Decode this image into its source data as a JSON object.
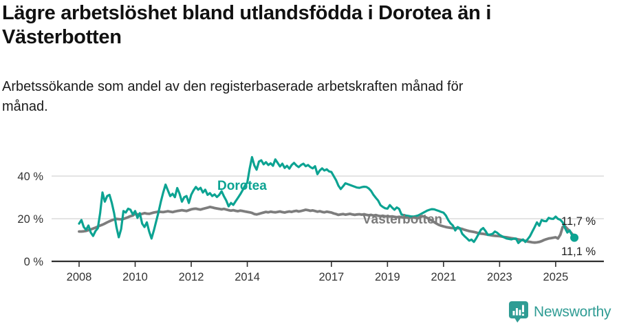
{
  "header": {
    "title": "Lägre arbetslöshet bland utlandsfödda i Dorotea än i\nVästerbotten",
    "subtitle": "Arbetssökande som andel av den registerbaserade arbetskraften månad för\nmånad."
  },
  "footer": {
    "brand": "Newsworthy"
  },
  "colors": {
    "dorotea": "#0ca392",
    "vasterbotten": "#7d7d7d",
    "grid": "#dcdcdc",
    "axis": "#2e2e2e",
    "axis_text": "#333333",
    "annotation_text": "#1c1c1c",
    "logo": "#2f9c94",
    "background": "#ffffff"
  },
  "chart_data": {
    "type": "line",
    "title": "Lägre arbetslöshet bland utlandsfödda i Dorotea än i Västerbotten",
    "subtitle": "Arbetssökande som andel av den registerbaserade arbetskraften månad för månad.",
    "unit": "%",
    "frequency": "monthly",
    "x_start": "2008-01",
    "x_end": "2025-09",
    "grid": "horizontal",
    "legend_position": "inline-labels",
    "ylim": [
      0,
      52
    ],
    "x_ticks": [
      2008,
      2010,
      2012,
      2014,
      2017,
      2019,
      2021,
      2023,
      2025
    ],
    "y_ticks": [
      {
        "value": 0,
        "label": "0 %"
      },
      {
        "value": 20,
        "label": "20 %"
      },
      {
        "value": 40,
        "label": "40 %"
      }
    ],
    "series": [
      {
        "name": "Dorotea",
        "final_value": 11.1,
        "end_label": "11,1 %",
        "has_end_dot": true,
        "values": [
          17.7,
          19.4,
          16.1,
          14.8,
          16.8,
          13.5,
          11.9,
          14.2,
          15.5,
          22.6,
          32.3,
          28.0,
          30.6,
          31.2,
          27.4,
          22.6,
          16.1,
          11.3,
          15.1,
          23.6,
          22.9,
          24.7,
          24.2,
          22.0,
          23.6,
          20.4,
          22.6,
          17.7,
          16.1,
          18.3,
          14.0,
          10.7,
          14.5,
          18.8,
          23.1,
          28.0,
          32.3,
          36.0,
          33.3,
          30.6,
          31.7,
          30.1,
          34.4,
          31.7,
          28.0,
          30.1,
          30.6,
          27.4,
          31.2,
          33.3,
          34.9,
          33.6,
          34.5,
          32.3,
          33.6,
          31.2,
          32.0,
          30.6,
          31.4,
          30.2,
          31.2,
          32.9,
          30.5,
          28.5,
          25.8,
          27.4,
          26.5,
          28.2,
          29.8,
          31.5,
          33.4,
          35.5,
          37.0,
          43.5,
          48.9,
          45.0,
          43.0,
          46.8,
          47.4,
          45.5,
          46.5,
          45.2,
          46.0,
          44.8,
          47.8,
          46.2,
          44.5,
          45.8,
          43.8,
          44.8,
          43.5,
          45.2,
          46.2,
          45.0,
          44.2,
          45.2,
          45.8,
          44.6,
          45.2,
          44.2,
          43.6,
          44.6,
          40.9,
          42.6,
          43.6,
          42.6,
          43.2,
          42.2,
          41.9,
          40.0,
          38.1,
          35.5,
          33.9,
          35.2,
          36.6,
          36.2,
          35.8,
          35.4,
          35.0,
          34.6,
          34.5,
          34.8,
          35.0,
          34.9,
          34.2,
          33.0,
          31.2,
          29.8,
          28.5,
          26.4,
          25.5,
          24.9,
          24.7,
          26.4,
          25.2,
          24.2,
          25.3,
          24.6,
          22.0,
          21.7,
          21.5,
          21.3,
          21.1,
          21.0,
          21.2,
          21.5,
          22.0,
          22.6,
          23.2,
          23.8,
          24.2,
          24.5,
          24.4,
          24.0,
          23.6,
          23.2,
          22.8,
          21.5,
          19.4,
          17.8,
          16.8,
          14.5,
          16.1,
          15.5,
          12.9,
          11.8,
          10.8,
          9.7,
          10.2,
          9.1,
          10.8,
          12.8,
          14.8,
          15.6,
          14.2,
          12.4,
          12.6,
          12.9,
          14.0,
          13.4,
          12.4,
          11.8,
          11.2,
          10.7,
          10.5,
          10.3,
          10.6,
          10.7,
          8.6,
          9.6,
          10.3,
          9.1,
          10.4,
          11.8,
          14.0,
          16.1,
          18.3,
          16.7,
          19.4,
          18.9,
          18.8,
          20.4,
          20.0,
          19.9,
          21.0,
          19.9,
          19.5,
          18.3,
          15.6,
          13.5,
          14.5,
          12.2,
          11.1
        ]
      },
      {
        "name": "Västerbotten",
        "final_value": 11.7,
        "end_label": "11,7 %",
        "has_end_dot": false,
        "values": [
          14.0,
          14.0,
          14.1,
          14.3,
          14.6,
          15.0,
          15.4,
          15.8,
          16.3,
          16.8,
          17.2,
          17.7,
          18.3,
          18.8,
          19.3,
          19.6,
          19.9,
          19.8,
          19.7,
          19.9,
          20.3,
          20.7,
          21.2,
          21.5,
          22.3,
          22.1,
          22.0,
          22.3,
          22.6,
          22.4,
          22.3,
          22.6,
          22.9,
          23.1,
          23.3,
          23.2,
          23.1,
          23.3,
          23.5,
          23.3,
          23.1,
          23.4,
          23.6,
          23.8,
          24.0,
          23.8,
          23.6,
          24.0,
          24.4,
          24.6,
          24.7,
          24.5,
          24.3,
          24.6,
          24.9,
          25.2,
          25.5,
          25.3,
          25.0,
          24.8,
          24.6,
          24.4,
          24.6,
          24.3,
          24.0,
          23.8,
          24.0,
          23.7,
          23.5,
          23.8,
          23.6,
          23.4,
          23.2,
          23.0,
          22.7,
          22.2,
          22.0,
          22.3,
          22.6,
          22.9,
          23.2,
          23.0,
          23.3,
          23.1,
          23.0,
          23.2,
          23.4,
          23.1,
          22.9,
          23.2,
          23.4,
          23.2,
          23.5,
          23.7,
          23.4,
          23.6,
          23.9,
          24.2,
          24.0,
          23.7,
          23.9,
          23.6,
          23.3,
          23.5,
          23.2,
          23.0,
          23.3,
          23.1,
          22.9,
          22.5,
          22.2,
          21.8,
          22.0,
          22.2,
          21.9,
          22.1,
          22.3,
          22.0,
          21.8,
          22.0,
          22.1,
          21.9,
          22.1,
          21.8,
          21.6,
          21.8,
          21.5,
          21.7,
          21.4,
          21.2,
          21.4,
          21.1,
          21.2,
          21.0,
          21.1,
          20.9,
          20.7,
          20.9,
          20.7,
          20.5,
          20.6,
          20.4,
          20.5,
          20.7,
          20.4,
          20.2,
          20.7,
          21.2,
          20.9,
          20.4,
          19.7,
          19.1,
          18.4,
          17.7,
          17.1,
          16.7,
          16.4,
          16.1,
          15.9,
          15.7,
          15.6,
          15.5,
          15.6,
          15.4,
          15.2,
          14.8,
          14.5,
          14.2,
          14.0,
          13.8,
          13.5,
          13.2,
          13.0,
          12.9,
          12.7,
          12.5,
          12.3,
          12.1,
          12.0,
          11.9,
          11.8,
          11.6,
          11.4,
          11.3,
          11.1,
          10.9,
          10.7,
          10.5,
          10.3,
          10.1,
          9.9,
          9.6,
          9.3,
          9.1,
          8.9,
          8.8,
          8.9,
          9.1,
          9.5,
          10.0,
          10.4,
          10.7,
          10.9,
          11.1,
          11.3,
          10.7,
          12.5,
          16.1,
          16.5,
          15.3,
          14.2,
          12.9,
          11.7
        ]
      }
    ]
  }
}
